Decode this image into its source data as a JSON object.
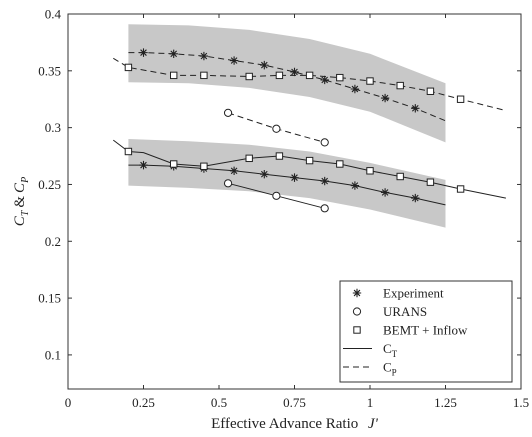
{
  "chart_data": {
    "type": "scatter",
    "xlabel": "Effective Advance Ratio",
    "xlabel_symbol": "J'",
    "ylabel": "C_T & C_P",
    "ylabel_parts": {
      "c1": "C",
      "s1": "T",
      "amp": "&",
      "c2": "C",
      "s2": "P"
    },
    "xlim": [
      0,
      1.5
    ],
    "ylim": [
      0.07,
      0.4
    ],
    "xticks": [
      0,
      0.25,
      0.5,
      0.75,
      1,
      1.25,
      1.5
    ],
    "xtick_labels": [
      "0",
      "0.25",
      "0.5",
      "0.75",
      "1",
      "1.25",
      "1.5"
    ],
    "yticks": [
      0.1,
      0.15,
      0.2,
      0.25,
      0.3,
      0.35,
      0.4
    ],
    "ytick_labels": [
      "0.1",
      "0.15",
      "0.2",
      "0.25",
      "0.3",
      "0.35",
      "0.4"
    ],
    "grid": false,
    "legend_position": "bottom-right",
    "legend": [
      {
        "label": "Experiment",
        "style": "asterisk"
      },
      {
        "label": "URANS",
        "style": "circle"
      },
      {
        "label": "BEMT + Inflow",
        "style": "square"
      },
      {
        "label": "C",
        "sub": "T",
        "style": "solid"
      },
      {
        "label": "C",
        "sub": "P",
        "style": "dashed"
      }
    ],
    "bands": [
      {
        "quantity": "C_P",
        "x": [
          0.2,
          0.4,
          0.6,
          0.8,
          1.0,
          1.25
        ],
        "lower": [
          0.34,
          0.339,
          0.335,
          0.327,
          0.314,
          0.287
        ],
        "upper": [
          0.391,
          0.39,
          0.386,
          0.378,
          0.365,
          0.339
        ]
      },
      {
        "quantity": "C_T",
        "x": [
          0.2,
          0.4,
          0.6,
          0.8,
          1.0,
          1.25
        ],
        "lower": [
          0.249,
          0.247,
          0.244,
          0.238,
          0.228,
          0.212
        ],
        "upper": [
          0.29,
          0.288,
          0.285,
          0.279,
          0.269,
          0.254
        ]
      }
    ],
    "series": [
      {
        "name": "Experiment",
        "quantity": "C_P",
        "marker": "asterisk",
        "line": "dashed",
        "x": [
          0.2,
          0.25,
          0.35,
          0.45,
          0.55,
          0.65,
          0.75,
          0.85,
          0.95,
          1.05,
          1.15,
          1.25
        ],
        "y": [
          0.366,
          0.366,
          0.365,
          0.363,
          0.359,
          0.355,
          0.349,
          0.342,
          0.334,
          0.326,
          0.317,
          0.306
        ],
        "marker_x": [
          0.25,
          0.35,
          0.45,
          0.55,
          0.65,
          0.75,
          0.85,
          0.95,
          1.05,
          1.15
        ],
        "marker_y": [
          0.366,
          0.365,
          0.363,
          0.359,
          0.355,
          0.349,
          0.342,
          0.334,
          0.326,
          0.317
        ]
      },
      {
        "name": "Experiment",
        "quantity": "C_T",
        "marker": "asterisk",
        "line": "solid",
        "x": [
          0.2,
          0.25,
          0.35,
          0.45,
          0.55,
          0.65,
          0.75,
          0.85,
          0.95,
          1.05,
          1.15,
          1.25
        ],
        "y": [
          0.267,
          0.267,
          0.266,
          0.264,
          0.262,
          0.259,
          0.256,
          0.253,
          0.249,
          0.243,
          0.238,
          0.232
        ],
        "marker_x": [
          0.25,
          0.35,
          0.45,
          0.55,
          0.65,
          0.75,
          0.85,
          0.95,
          1.05,
          1.15
        ],
        "marker_y": [
          0.267,
          0.266,
          0.264,
          0.262,
          0.259,
          0.256,
          0.253,
          0.249,
          0.243,
          0.238
        ]
      },
      {
        "name": "URANS",
        "quantity": "C_P",
        "marker": "circle",
        "line": "dashed",
        "x": [
          0.53,
          0.69,
          0.85
        ],
        "y": [
          0.313,
          0.299,
          0.287
        ],
        "marker_x": [
          0.53,
          0.69,
          0.85
        ],
        "marker_y": [
          0.313,
          0.299,
          0.287
        ]
      },
      {
        "name": "URANS",
        "quantity": "C_T",
        "marker": "circle",
        "line": "solid",
        "x": [
          0.53,
          0.69,
          0.85
        ],
        "y": [
          0.251,
          0.24,
          0.229
        ],
        "marker_x": [
          0.53,
          0.69,
          0.85
        ],
        "marker_y": [
          0.251,
          0.24,
          0.229
        ]
      },
      {
        "name": "BEMT + Inflow",
        "quantity": "C_P",
        "marker": "square",
        "line": "dashed",
        "x": [
          0.15,
          0.2,
          0.35,
          0.45,
          0.6,
          0.7,
          0.8,
          0.9,
          1.0,
          1.1,
          1.2,
          1.3,
          1.45
        ],
        "y": [
          0.361,
          0.353,
          0.346,
          0.346,
          0.345,
          0.346,
          0.346,
          0.344,
          0.341,
          0.337,
          0.332,
          0.325,
          0.315
        ],
        "marker_x": [
          0.2,
          0.35,
          0.45,
          0.6,
          0.7,
          0.8,
          0.9,
          1.0,
          1.1,
          1.2,
          1.3
        ],
        "marker_y": [
          0.353,
          0.346,
          0.346,
          0.345,
          0.346,
          0.346,
          0.344,
          0.341,
          0.337,
          0.332,
          0.325
        ]
      },
      {
        "name": "BEMT + Inflow",
        "quantity": "C_T",
        "marker": "square",
        "line": "solid",
        "x": [
          0.15,
          0.2,
          0.25,
          0.35,
          0.45,
          0.6,
          0.7,
          0.8,
          0.9,
          1.0,
          1.1,
          1.2,
          1.3,
          1.45
        ],
        "y": [
          0.289,
          0.279,
          0.278,
          0.268,
          0.266,
          0.273,
          0.275,
          0.271,
          0.268,
          0.262,
          0.257,
          0.252,
          0.246,
          0.238
        ],
        "marker_x": [
          0.2,
          0.35,
          0.45,
          0.6,
          0.7,
          0.8,
          0.9,
          1.0,
          1.1,
          1.2,
          1.3
        ],
        "marker_y": [
          0.279,
          0.268,
          0.266,
          0.273,
          0.275,
          0.271,
          0.268,
          0.262,
          0.257,
          0.252,
          0.246
        ]
      }
    ]
  }
}
